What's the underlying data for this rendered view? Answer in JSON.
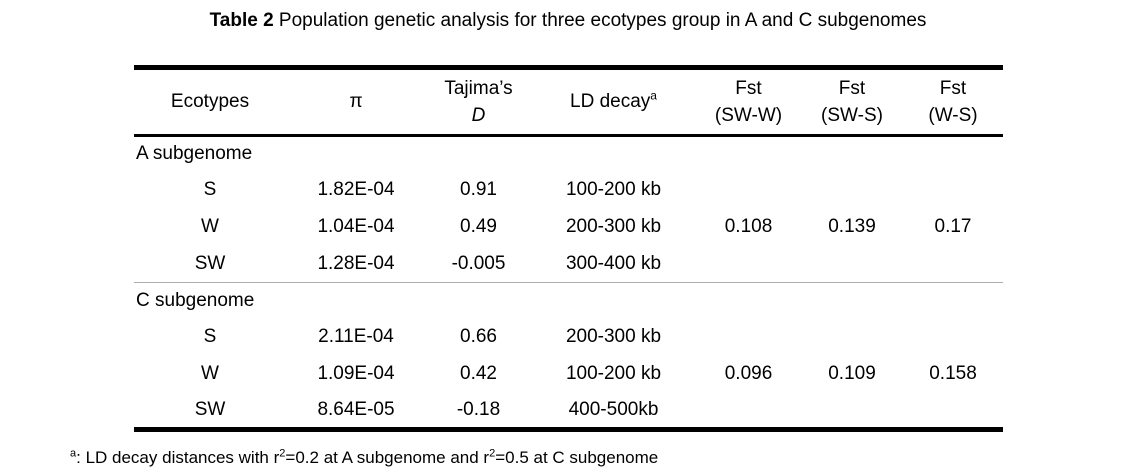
{
  "caption": {
    "label": "Table 2",
    "text": " Population genetic analysis for three ecotypes group in A and C subgenomes"
  },
  "table": {
    "header": {
      "ecotypes": "Ecotypes",
      "pi": "π",
      "tajimas_line1": "Tajima’s",
      "tajimas_line2": "D",
      "ld_decay": "LD decay",
      "ld_decay_sup": "a",
      "fst1_line1": "Fst",
      "fst1_line2": "(SW-W)",
      "fst2_line1": "Fst",
      "fst2_line2": "(SW-S)",
      "fst3_line1": "Fst",
      "fst3_line2": "(W-S)"
    },
    "sections": [
      {
        "name": "A subgenome",
        "rows": [
          {
            "ecotype": "S",
            "pi": "1.82E-04",
            "tajimas_d": "0.91",
            "ld_decay": "100-200 kb",
            "fst_sw_w": "",
            "fst_sw_s": "",
            "fst_w_s": ""
          },
          {
            "ecotype": "W",
            "pi": "1.04E-04",
            "tajimas_d": "0.49",
            "ld_decay": "200-300 kb",
            "fst_sw_w": "0.108",
            "fst_sw_s": "0.139",
            "fst_w_s": "0.17"
          },
          {
            "ecotype": "SW",
            "pi": "1.28E-04",
            "tajimas_d": "-0.005",
            "ld_decay": "300-400 kb",
            "fst_sw_w": "",
            "fst_sw_s": "",
            "fst_w_s": ""
          }
        ]
      },
      {
        "name": "C subgenome",
        "rows": [
          {
            "ecotype": "S",
            "pi": "2.11E-04",
            "tajimas_d": "0.66",
            "ld_decay": "200-300 kb",
            "fst_sw_w": "",
            "fst_sw_s": "",
            "fst_w_s": ""
          },
          {
            "ecotype": "W",
            "pi": "1.09E-04",
            "tajimas_d": "0.42",
            "ld_decay": "100-200 kb",
            "fst_sw_w": "0.096",
            "fst_sw_s": "0.109",
            "fst_w_s": "0.158"
          },
          {
            "ecotype": "SW",
            "pi": "8.64E-05",
            "tajimas_d": "-0.18",
            "ld_decay": "400-500kb",
            "fst_sw_w": "",
            "fst_sw_s": "",
            "fst_w_s": ""
          }
        ]
      }
    ]
  },
  "footnote": {
    "marker": "a",
    "part1": ": LD decay distances with r",
    "sup1": "2",
    "part2": "=0.2 at A subgenome and r",
    "sup2": "2",
    "part3": "=0.5 at C subgenome"
  },
  "colors": {
    "rule_black": "#000000",
    "rule_gray": "#adadad",
    "background": "#ffffff",
    "text": "#000000"
  }
}
